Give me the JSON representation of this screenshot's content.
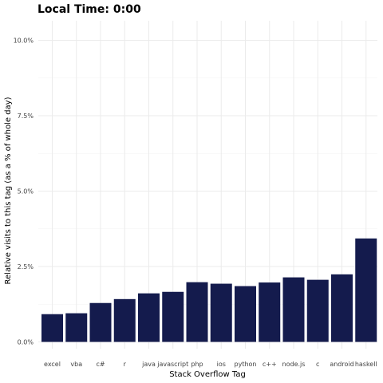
{
  "chart_data": {
    "type": "bar",
    "title": "Local Time:  0:00",
    "xlabel": "Stack Overflow Tag",
    "ylabel": "Relative visits to this tag (as a % of whole day)",
    "categories": [
      "excel",
      "vba",
      "c#",
      "r",
      "java",
      "javascript",
      "php",
      "ios",
      "python",
      "c++",
      "node.js",
      "c",
      "android",
      "haskell"
    ],
    "values": [
      0.92,
      0.95,
      1.29,
      1.42,
      1.61,
      1.66,
      1.98,
      1.93,
      1.85,
      1.97,
      2.14,
      2.06,
      2.24,
      3.43
    ],
    "ylim": [
      0,
      10.5
    ],
    "yticks": [
      0,
      2.5,
      5.0,
      7.5,
      10.0
    ],
    "ytick_labels": [
      "0.0%",
      "2.5%",
      "5.0%",
      "7.5%",
      "10.0%"
    ],
    "grid": true,
    "bar_color": "#141b4d",
    "gridline_color": "#ebebeb"
  }
}
